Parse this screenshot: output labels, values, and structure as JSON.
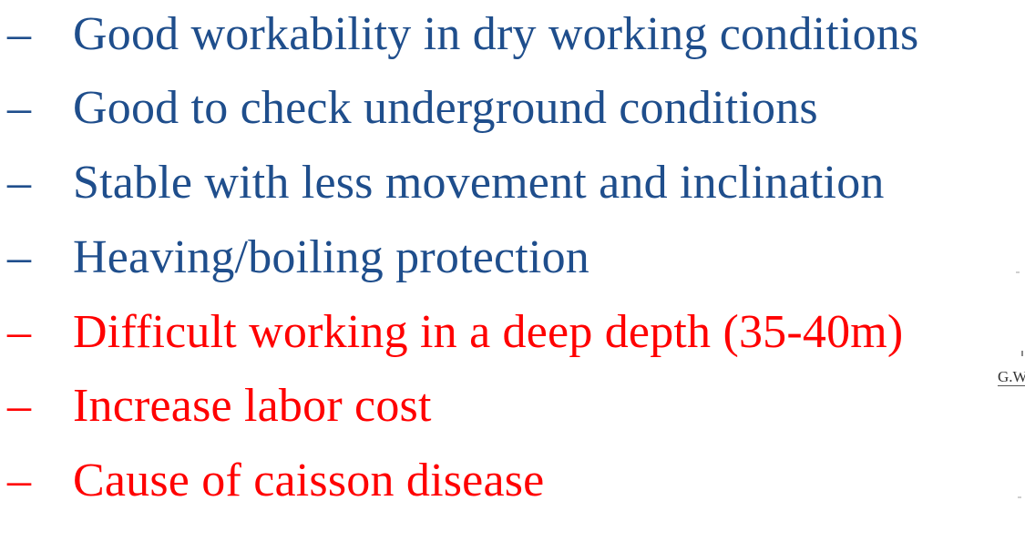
{
  "colors": {
    "advantage": "#1F4E8C",
    "disadvantage": "#FF0000"
  },
  "bullets": [
    {
      "dash": "–",
      "text": "Good workability in dry working conditions",
      "kind": "advantage"
    },
    {
      "dash": "–",
      "text": "Good to check underground conditions",
      "kind": "advantage"
    },
    {
      "dash": "–",
      "text": "Stable with less movement and inclination",
      "kind": "advantage"
    },
    {
      "dash": "–",
      "text": "Heaving/boiling protection",
      "kind": "advantage"
    },
    {
      "dash": "–",
      "text": "Difficult working in a deep depth (35-40m)",
      "kind": "disadvantage"
    },
    {
      "dash": "–",
      "text": "Increase labor cost",
      "kind": "disadvantage"
    },
    {
      "dash": "–",
      "text": "Cause of caisson disease",
      "kind": "disadvantage"
    }
  ],
  "figure": {
    "label_fragment": "G.W"
  }
}
